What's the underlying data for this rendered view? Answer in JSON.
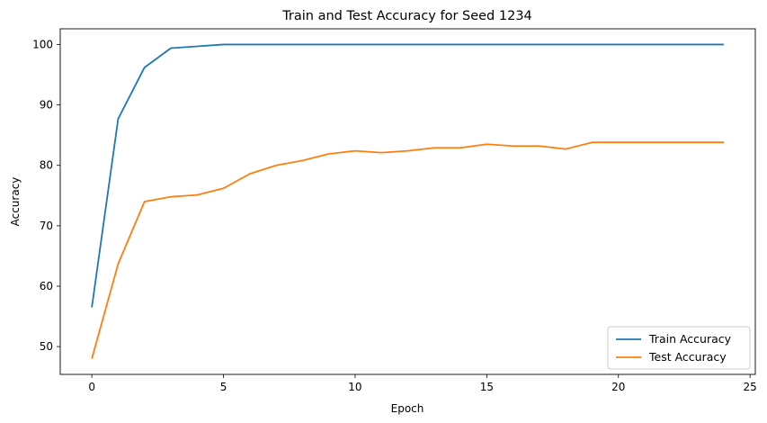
{
  "chart_data": {
    "type": "line",
    "title": "Train and Test Accuracy for Seed 1234",
    "xlabel": "Epoch",
    "ylabel": "Accuracy",
    "xlim": [
      -1.2,
      25.2
    ],
    "ylim": [
      45.4,
      102.6
    ],
    "xticks": [
      0,
      5,
      10,
      15,
      20,
      25
    ],
    "yticks": [
      50,
      60,
      70,
      80,
      90,
      100
    ],
    "grid": false,
    "legend_position": "bottom-right",
    "x": [
      0,
      1,
      2,
      3,
      4,
      5,
      6,
      7,
      8,
      9,
      10,
      11,
      12,
      13,
      14,
      15,
      16,
      17,
      18,
      19,
      20,
      21,
      22,
      23,
      24
    ],
    "series": [
      {
        "name": "Train Accuracy",
        "color": "#1f77b4",
        "values": [
          56.5,
          87.7,
          96.2,
          99.4,
          99.7,
          100,
          100,
          100,
          100,
          100,
          100,
          100,
          100,
          100,
          100,
          100,
          100,
          100,
          100,
          100,
          100,
          100,
          100,
          100,
          100
        ]
      },
      {
        "name": "Test Accuracy",
        "color": "#ff7f0e",
        "values": [
          48.0,
          63.7,
          74.0,
          74.8,
          75.1,
          76.2,
          78.6,
          80.0,
          80.8,
          81.9,
          82.4,
          82.1,
          82.4,
          82.9,
          82.9,
          83.5,
          83.2,
          83.2,
          82.7,
          83.8,
          83.8,
          83.8,
          83.8,
          83.8,
          83.8
        ]
      }
    ]
  }
}
